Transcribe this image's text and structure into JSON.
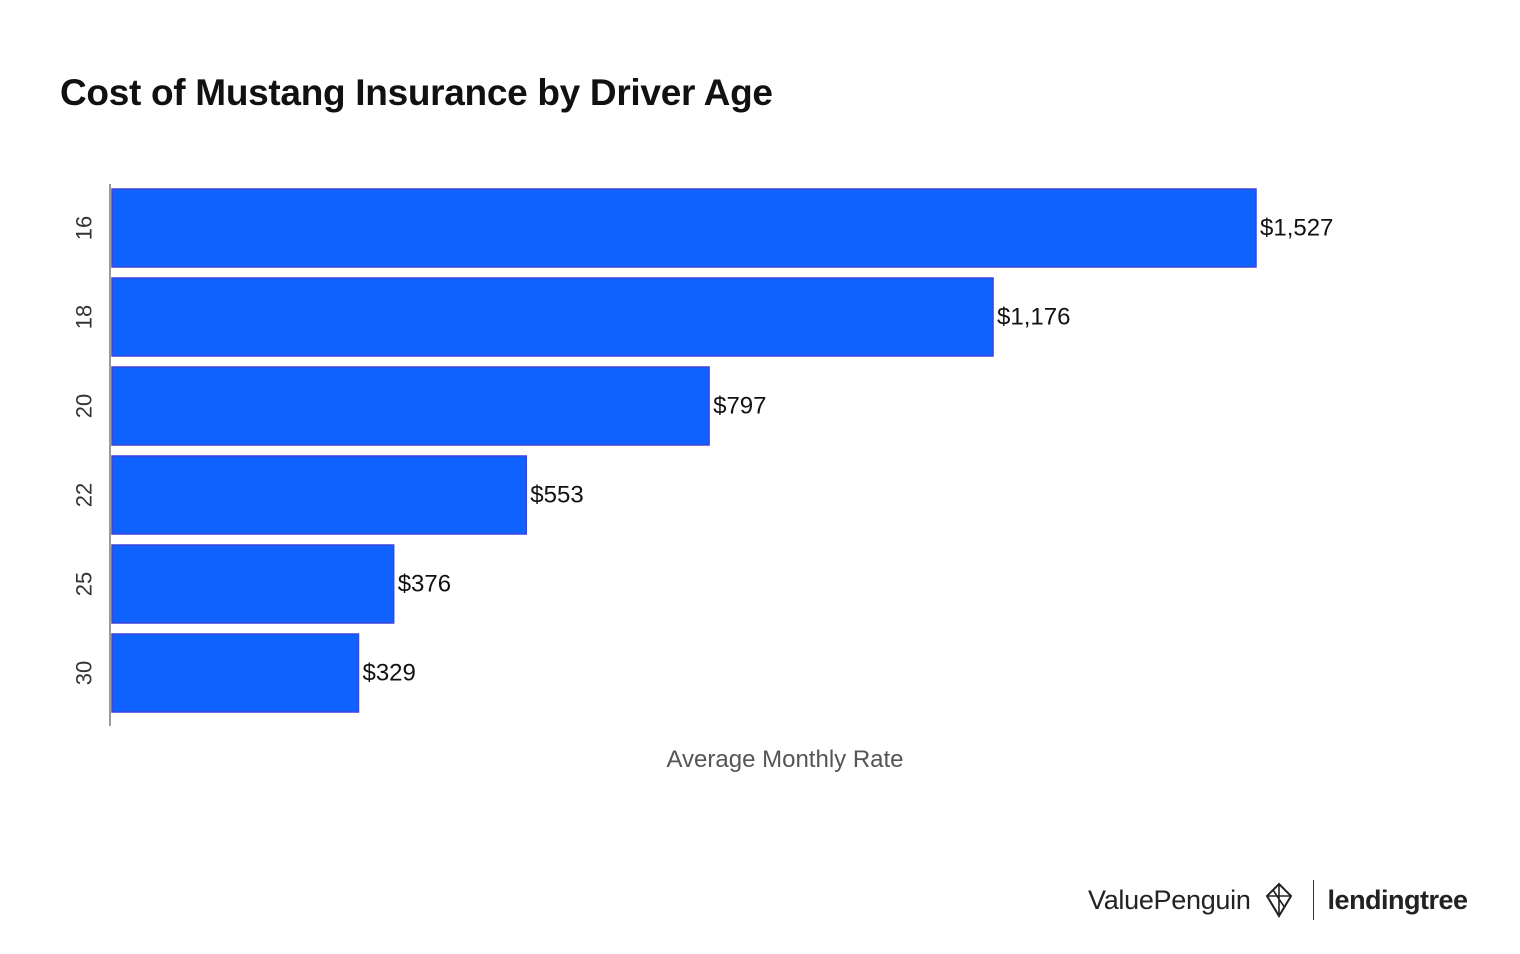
{
  "chart_data": {
    "type": "bar",
    "orientation": "horizontal",
    "title": "Cost of Mustang Insurance by Driver Age",
    "xlabel": "Average Monthly Rate",
    "ylabel": "",
    "categories": [
      "16",
      "18",
      "20",
      "22",
      "25",
      "30"
    ],
    "values": [
      1527,
      1176,
      797,
      553,
      376,
      329
    ],
    "value_labels": [
      "$1,527",
      "$1,176",
      "$797",
      "$553",
      "$376",
      "$329"
    ],
    "xlim": [
      0,
      1527
    ],
    "grid": false,
    "legend": "none",
    "colors": {
      "bar": "#0f62fe",
      "bar_edge": "#3d44d8",
      "axis": "#9a9a9a",
      "tick_text": "#333333",
      "label_text": "#111111"
    }
  },
  "branding": {
    "primary": "ValuePenguin",
    "secondary": "lendingtree",
    "primary_icon": "penguin-icon"
  }
}
